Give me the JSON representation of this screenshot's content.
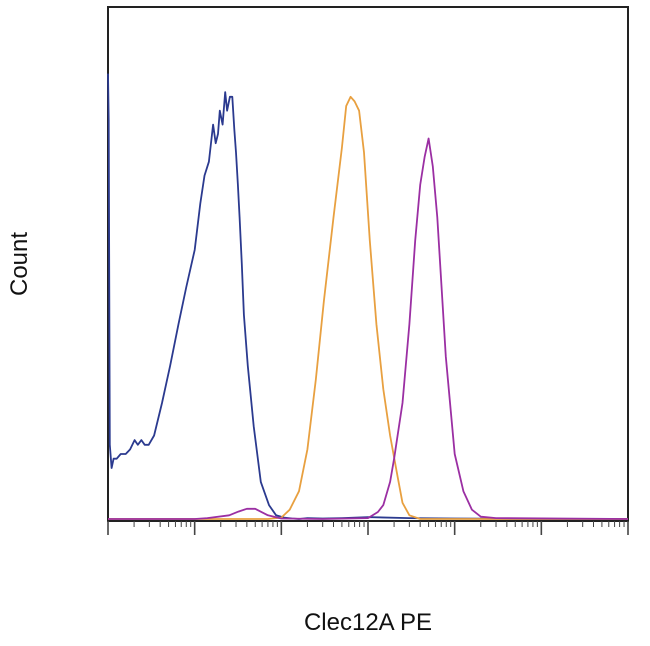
{
  "chart_data": {
    "type": "line",
    "title": "",
    "xlabel": "Clec12A PE",
    "ylabel": "Count",
    "x_scale": "log",
    "xlim": [
      0.01,
      10000
    ],
    "ylim": [
      0,
      100
    ],
    "grid": false,
    "legend": "none",
    "series": [
      {
        "color": "#2b3a8f",
        "x": [
          0.01,
          0.0102,
          0.0105,
          0.011,
          0.0116,
          0.0126,
          0.014,
          0.016,
          0.018,
          0.0203,
          0.0221,
          0.0243,
          0.0265,
          0.0295,
          0.034,
          0.042,
          0.052,
          0.065,
          0.08,
          0.1,
          0.116,
          0.13,
          0.146,
          0.163,
          0.175,
          0.186,
          0.195,
          0.21,
          0.225,
          0.237,
          0.255,
          0.272,
          0.287,
          0.3,
          0.315,
          0.33,
          0.35,
          0.37,
          0.41,
          0.48,
          0.58,
          0.72,
          0.87,
          1.08,
          1.33,
          1.6,
          2.0,
          3.0,
          5.0,
          10.0,
          30.0,
          100.0,
          1000.0,
          10000.0
        ],
        "y": [
          96,
          86,
          16,
          11,
          13,
          13,
          14,
          14,
          15,
          17,
          16,
          17,
          16,
          16,
          18,
          25,
          33,
          42,
          50,
          58,
          68,
          74,
          77,
          85,
          81,
          83,
          88,
          85,
          92,
          88,
          91,
          91,
          84,
          79,
          72,
          65,
          55,
          44,
          33,
          20,
          8,
          3,
          0.8,
          0.3,
          0.1,
          0,
          0.2,
          0.1,
          0.2,
          0.4,
          0.2,
          0.1,
          0,
          0
        ]
      },
      {
        "color": "#e8a040",
        "x": [
          0.01,
          0.3,
          0.7,
          1.0,
          1.25,
          1.6,
          2.0,
          2.5,
          3.1,
          4.0,
          5.0,
          5.6,
          6.3,
          7.0,
          7.9,
          9.0,
          10.5,
          12.5,
          15.0,
          18.0,
          22.0,
          25.0,
          30.0,
          40.0,
          10000.0
        ],
        "y": [
          0,
          0,
          0,
          0.3,
          2,
          6,
          15,
          30,
          47,
          65,
          80,
          89,
          91,
          90,
          88,
          79,
          60,
          42,
          28,
          18,
          9,
          3.5,
          0.8,
          0,
          0
        ]
      },
      {
        "color": "#9b2fa3",
        "x": [
          0.01,
          0.1,
          0.14,
          0.25,
          0.32,
          0.4,
          0.5,
          0.7,
          1.0,
          3.0,
          10.0,
          13.0,
          15.0,
          18.0,
          20.0,
          25.0,
          30.0,
          35.0,
          40.0,
          45.0,
          50.0,
          56.0,
          63.0,
          79.0,
          100.0,
          126.0,
          158.0,
          200.0,
          300.0,
          10000.0
        ],
        "y": [
          0,
          0,
          0.2,
          0.8,
          1.6,
          2.2,
          2.2,
          0.8,
          0.1,
          0,
          0.2,
          1.5,
          3,
          8,
          13,
          25,
          42,
          60,
          72,
          78,
          82,
          76,
          65,
          35,
          14,
          6,
          2,
          0.5,
          0.2,
          0
        ]
      }
    ]
  }
}
